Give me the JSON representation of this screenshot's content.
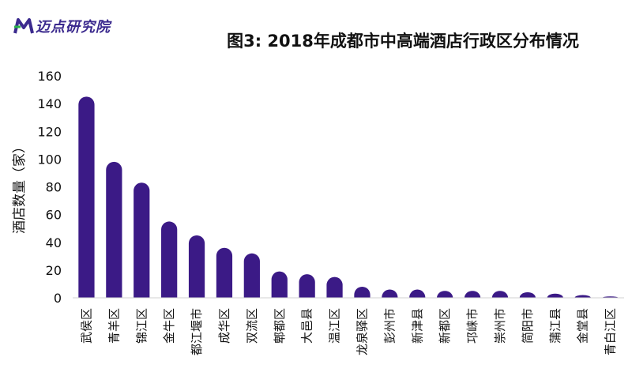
{
  "logo": {
    "text": "迈点研究院",
    "icon": "m-logo-icon",
    "colors": {
      "primary": "#3b2a8e",
      "secondary": "#2ab34a"
    }
  },
  "chart_data": {
    "type": "bar",
    "title": "图3: 2018年成都市中高端酒店行政区分布情况",
    "xlabel": "",
    "ylabel": "酒店数量（家）",
    "ylim": [
      0,
      160
    ],
    "yticks": [
      0,
      20,
      40,
      60,
      80,
      100,
      120,
      140,
      160
    ],
    "grid": false,
    "bar_color": "#3b1a86",
    "categories": [
      "武侯区",
      "青羊区",
      "锦江区",
      "金牛区",
      "都江堰市",
      "成华区",
      "双流区",
      "郫都区",
      "大邑县",
      "温江区",
      "龙泉驿区",
      "彭州市",
      "新津县",
      "新都区",
      "邛崃市",
      "崇州市",
      "简阳市",
      "蒲江县",
      "金堂县",
      "青白江区"
    ],
    "values": [
      145,
      98,
      83,
      55,
      45,
      36,
      32,
      19,
      17,
      15,
      8,
      6,
      6,
      5,
      5,
      5,
      4,
      3,
      2,
      1
    ]
  }
}
